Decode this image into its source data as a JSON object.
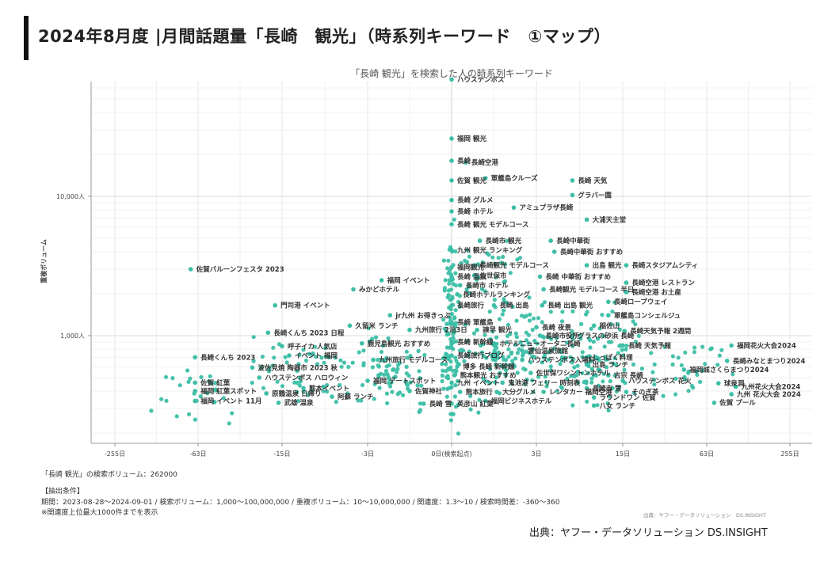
{
  "header": {
    "title": "2024年8月度 |月間話題量「長崎　観光」（時系列キーワード　①マップ）"
  },
  "footer": {
    "volume": "「長崎 観光」の検索ボリューム：262000",
    "conditions_title": "【抽出条件】",
    "conditions": "期間：2023-08-28〜2024-09-01 / 検索ボリューム：1,000〜100,000,000 / 重複ボリューム：10〜10,000,000 / 関連度：1.3〜10 / 検索時間差：-360〜360",
    "note": "※関連度上位最大1000件までを表示",
    "source_small": "出典：ヤフー・データソリューション　DS.INSIGHT",
    "source": "出典：ヤフー・データソリューション DS.INSIGHT"
  },
  "chart_data": {
    "type": "scatter",
    "title": "「長崎 観光」を検索した人の時系列キーワード",
    "ylabel": "重複ボリューム",
    "xlabel": "",
    "x_scale": "symmetric-log (days)",
    "y_scale": "log",
    "x_ticks": [
      {
        "value": -255,
        "label": "-255日"
      },
      {
        "value": -63,
        "label": "-63日"
      },
      {
        "value": -15,
        "label": "-15日"
      },
      {
        "value": -3,
        "label": "-3日"
      },
      {
        "value": 0,
        "label": "0日(検索起点)"
      },
      {
        "value": 3,
        "label": "3日"
      },
      {
        "value": 15,
        "label": "15日"
      },
      {
        "value": 63,
        "label": "63日"
      },
      {
        "value": 255,
        "label": "255日"
      }
    ],
    "y_ticks": [
      {
        "value": 1000,
        "label": "1,000人"
      },
      {
        "value": 10000,
        "label": "10,000人"
      }
    ],
    "grid": true,
    "color": "#3cbfa6",
    "labeled_points": [
      {
        "label": "ハウステンボス",
        "x": 0,
        "y": 69000
      },
      {
        "label": "福岡 観光",
        "x": 0,
        "y": 26000
      },
      {
        "label": "長崎",
        "x": 0,
        "y": 18000
      },
      {
        "label": "長崎空港",
        "x": 0.5,
        "y": 17500
      },
      {
        "label": "佐賀 観光",
        "x": 0,
        "y": 13000
      },
      {
        "label": "軍艦島クルーズ",
        "x": 1.2,
        "y": 13500
      },
      {
        "label": "長崎 天気",
        "x": 8,
        "y": 13000
      },
      {
        "label": "グラバー園",
        "x": 8,
        "y": 10200
      },
      {
        "label": "長崎 グルメ",
        "x": 0,
        "y": 9400
      },
      {
        "label": "アミュプラザ長崎",
        "x": 2.2,
        "y": 8300
      },
      {
        "label": "長崎 ホテル",
        "x": 0,
        "y": 7800
      },
      {
        "label": "大浦天主堂",
        "x": 10,
        "y": 6800
      },
      {
        "label": "長崎 観光 モデルコース",
        "x": 0,
        "y": 6300
      },
      {
        "label": "長崎市 観光",
        "x": 1.0,
        "y": 4800
      },
      {
        "label": "長崎中華街",
        "x": 5,
        "y": 4800
      },
      {
        "label": "九州 観光 ランキング",
        "x": 0,
        "y": 4100
      },
      {
        "label": "長崎中華街 おすすめ",
        "x": 5.5,
        "y": 4000
      },
      {
        "label": "佐賀バルーンフェスタ 2023",
        "x": -80,
        "y": 3000
      },
      {
        "label": "福岡観光",
        "x": 0,
        "y": 3100
      },
      {
        "label": "長崎観光 モデルコース",
        "x": 0.8,
        "y": 3200
      },
      {
        "label": "出島 観光",
        "x": 10,
        "y": 3200
      },
      {
        "label": "長崎スタジアムシティ",
        "x": 17,
        "y": 3200
      },
      {
        "label": "長崎 温泉",
        "x": 0,
        "y": 2650
      },
      {
        "label": "佐世保市",
        "x": 0.8,
        "y": 2700
      },
      {
        "label": "長崎 中華街 おすすめ",
        "x": 3.5,
        "y": 2650
      },
      {
        "label": "福岡 イベント",
        "x": -2.5,
        "y": 2500
      },
      {
        "label": "長崎空港 レストラン",
        "x": 17,
        "y": 2400
      },
      {
        "label": "長崎市 ホテル",
        "x": 0.3,
        "y": 2300
      },
      {
        "label": "みかどホテル",
        "x": -5,
        "y": 2150
      },
      {
        "label": "長崎観光 モデルコース 半日",
        "x": 4,
        "y": 2150
      },
      {
        "label": "長崎空港 お土産",
        "x": 17,
        "y": 2050
      },
      {
        "label": "長崎ホテルランキング",
        "x": 0.2,
        "y": 1980
      },
      {
        "label": "長崎ロープウェイ",
        "x": 13,
        "y": 1750
      },
      {
        "label": "門司港 イベント",
        "x": -19,
        "y": 1650
      },
      {
        "label": "長崎旅行",
        "x": 0,
        "y": 1650
      },
      {
        "label": "長崎 出島",
        "x": 1.5,
        "y": 1650
      },
      {
        "label": "長崎 出島 観光",
        "x": 3.8,
        "y": 1650
      },
      {
        "label": "jr九州 お得きっぷ",
        "x": -2.2,
        "y": 1400
      },
      {
        "label": "軍艦島コンシェルジュ",
        "x": 13,
        "y": 1400
      },
      {
        "label": "長崎 軍艦島",
        "x": 0,
        "y": 1250
      },
      {
        "label": "久留米 ランチ",
        "x": -5.5,
        "y": 1180
      },
      {
        "label": "稲佐山",
        "x": 11,
        "y": 1180
      },
      {
        "label": "九州旅行 2泊3日",
        "x": -1.5,
        "y": 1100
      },
      {
        "label": "諫早 観光",
        "x": 0.9,
        "y": 1100
      },
      {
        "label": "長崎 夜景",
        "x": 3,
        "y": 1150
      },
      {
        "label": "長崎くんち 2023 日程",
        "x": -23,
        "y": 1050
      },
      {
        "label": "長崎市役所",
        "x": 3.5,
        "y": 1000
      },
      {
        "label": "長崎天気予報 2週間",
        "x": 16,
        "y": 1080
      },
      {
        "label": "グラスの砂浜 長崎",
        "x": 8,
        "y": 1000
      },
      {
        "label": "鹿児島観光 おすすめ",
        "x": -3.8,
        "y": 880
      },
      {
        "label": "長崎 新幹線",
        "x": 0,
        "y": 900
      },
      {
        "label": "ホテルニューオータニ長崎",
        "x": 1.5,
        "y": 880
      },
      {
        "label": "長崎 天気予報",
        "x": 15,
        "y": 850
      },
      {
        "label": "呼子イカ 人気店",
        "x": -15,
        "y": 840
      },
      {
        "label": "福岡花火大会2024",
        "x": 120,
        "y": 850
      },
      {
        "label": "雲仙温泉旅館",
        "x": 2.5,
        "y": 780
      },
      {
        "label": "長崎くんち 2023",
        "x": -70,
        "y": 700
      },
      {
        "label": "イベント 福岡",
        "x": -14,
        "y": 720
      },
      {
        "label": "長崎旅行ブログ",
        "x": 0,
        "y": 720
      },
      {
        "label": "九州旅行 モデルコース",
        "x": -2.8,
        "y": 670
      },
      {
        "label": "ハウステンボス入場料",
        "x": 2.5,
        "y": 670
      },
      {
        "label": "しっぽく料理",
        "x": 10,
        "y": 700
      },
      {
        "label": "長崎みなとまつり2024",
        "x": 110,
        "y": 660
      },
      {
        "label": "出島 ランチ",
        "x": 10,
        "y": 620
      },
      {
        "label": "波佐見焼 陶器市 2023 秋",
        "x": -32,
        "y": 590
      },
      {
        "label": "博多 長崎 新幹線",
        "x": 0.2,
        "y": 600
      },
      {
        "label": "福岡城さくらまつり2024",
        "x": 50,
        "y": 570
      },
      {
        "label": "佐世保ワシントンホテル",
        "x": 2.8,
        "y": 540
      },
      {
        "label": "吉宗 長崎",
        "x": 13,
        "y": 520
      },
      {
        "label": "ハウステンボス ハロウィン",
        "x": -28,
        "y": 500
      },
      {
        "label": "熊本観光 おすすめ",
        "x": 0.1,
        "y": 520
      },
      {
        "label": "福岡 デートスポット",
        "x": -3,
        "y": 475
      },
      {
        "label": "九州 イベント",
        "x": 0,
        "y": 460
      },
      {
        "label": "鬼池港 フェリー 時刻表",
        "x": 1.8,
        "y": 460
      },
      {
        "label": "ハウステンボス 花火",
        "x": 15,
        "y": 475
      },
      {
        "label": "球泉洞",
        "x": 90,
        "y": 455
      },
      {
        "label": "佐賀 紅葉",
        "x": -70,
        "y": 460
      },
      {
        "label": "九州花火大会2024",
        "x": 130,
        "y": 430
      },
      {
        "label": "熊本イベント",
        "x": -12,
        "y": 420
      },
      {
        "label": "福岡 紅葉スポット",
        "x": -70,
        "y": 400
      },
      {
        "label": "長崎市 雪",
        "x": 10,
        "y": 420
      },
      {
        "label": "原鶴温泉 日帰り",
        "x": -24,
        "y": 385
      },
      {
        "label": "佐賀神社",
        "x": -1.5,
        "y": 400
      },
      {
        "label": "熊本旅行",
        "x": 0.3,
        "y": 395
      },
      {
        "label": "大分グルメ",
        "x": 1.6,
        "y": 395
      },
      {
        "label": "レンタカー 福岡空港",
        "x": 4,
        "y": 395
      },
      {
        "label": "そのぎ茶",
        "x": 17,
        "y": 395
      },
      {
        "label": "九州 花火大会 2024",
        "x": 120,
        "y": 380
      },
      {
        "label": "阿蘇 ランチ",
        "x": -8,
        "y": 365
      },
      {
        "label": "ラウンドワン 佐賀",
        "x": 11,
        "y": 360
      },
      {
        "label": "福岡 イベント 11月",
        "x": -70,
        "y": 340
      },
      {
        "label": "武雄 温泉",
        "x": -17,
        "y": 330
      },
      {
        "label": "福岡ビジネスホテル",
        "x": 1.2,
        "y": 340
      },
      {
        "label": "長崎 雪",
        "x": -1,
        "y": 325
      },
      {
        "label": "英彦山 紅葉",
        "x": 0,
        "y": 325
      },
      {
        "label": "八女 ランチ",
        "x": 11,
        "y": 315
      },
      {
        "label": "佐賀 プール",
        "x": 80,
        "y": 330
      }
    ]
  }
}
